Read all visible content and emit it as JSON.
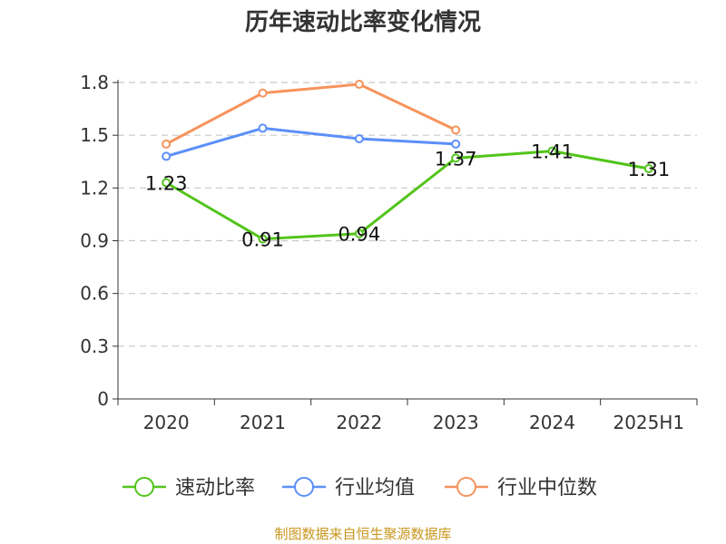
{
  "chart_data": {
    "type": "line",
    "title": "历年速动比率变化情况",
    "categories": [
      "2020",
      "2021",
      "2022",
      "2023",
      "2024",
      "2025H1"
    ],
    "ylim": [
      0,
      1.8
    ],
    "yticks": [
      "0",
      "0.3",
      "0.6",
      "0.9",
      "1.2",
      "1.5",
      "1.8"
    ],
    "grid": true,
    "legend_position": "bottom",
    "series": [
      {
        "name": "速动比率",
        "color": "#52c41a",
        "values": [
          1.23,
          0.91,
          0.94,
          1.37,
          1.41,
          1.31
        ],
        "labels": [
          "1.23",
          "0.91",
          "0.94",
          "1.37",
          "1.41",
          "1.31"
        ]
      },
      {
        "name": "行业均值",
        "color": "#5b8ff9",
        "values": [
          1.38,
          1.54,
          1.48,
          1.45,
          null,
          null
        ]
      },
      {
        "name": "行业中位数",
        "color": "#f7935c",
        "values": [
          1.45,
          1.74,
          1.79,
          1.53,
          null,
          null
        ]
      }
    ]
  },
  "footer": {
    "source": "制图数据来自恒生聚源数据库"
  }
}
